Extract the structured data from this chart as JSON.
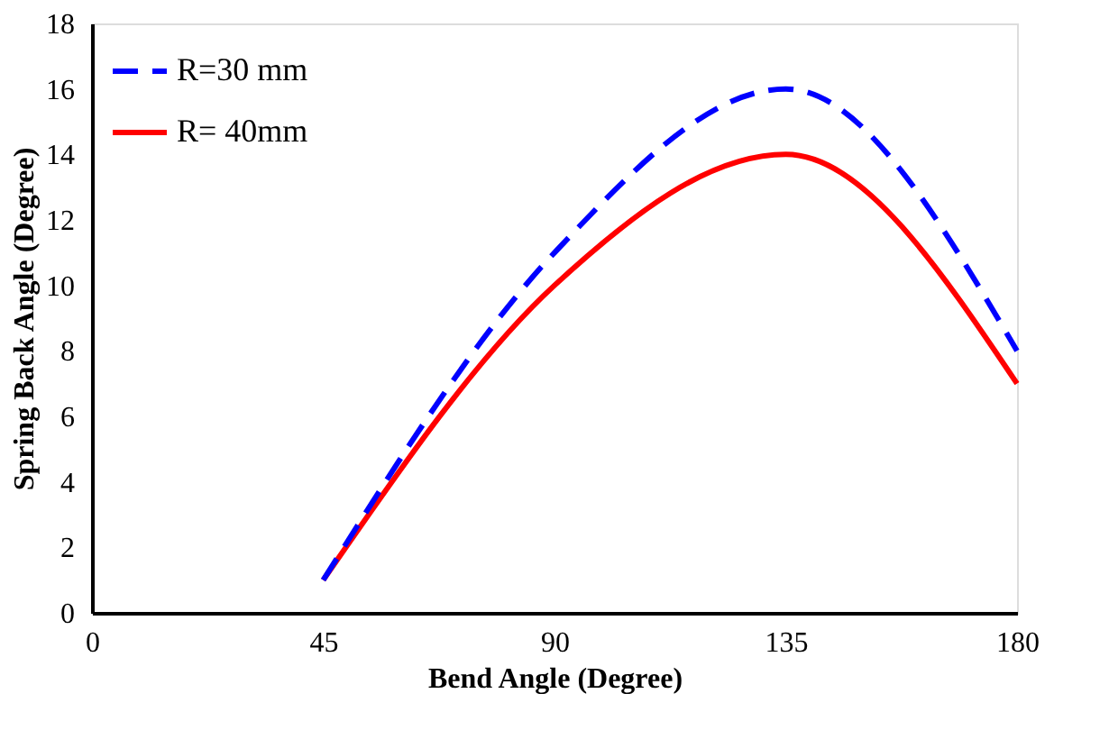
{
  "chart_data": {
    "type": "line",
    "xlabel": "Bend Angle (Degree)",
    "ylabel": "Spring Back Angle (Degree)",
    "x": [
      45,
      90,
      135,
      180
    ],
    "series": [
      {
        "name": "R=30 mm",
        "color": "#0000ff",
        "line_style": "dashed",
        "values": [
          1,
          11,
          16,
          8
        ]
      },
      {
        "name": "R= 40mm",
        "color": "#ff0000",
        "line_style": "solid",
        "values": [
          1,
          10,
          14,
          7
        ]
      }
    ],
    "xlim": [
      0,
      180
    ],
    "xticks": [
      0,
      45,
      90,
      135,
      180
    ],
    "ylim": [
      0,
      18
    ],
    "yticks": [
      0,
      2,
      4,
      6,
      8,
      10,
      12,
      14,
      16,
      18
    ],
    "grid": false,
    "legend": "top left",
    "marker": "none"
  }
}
